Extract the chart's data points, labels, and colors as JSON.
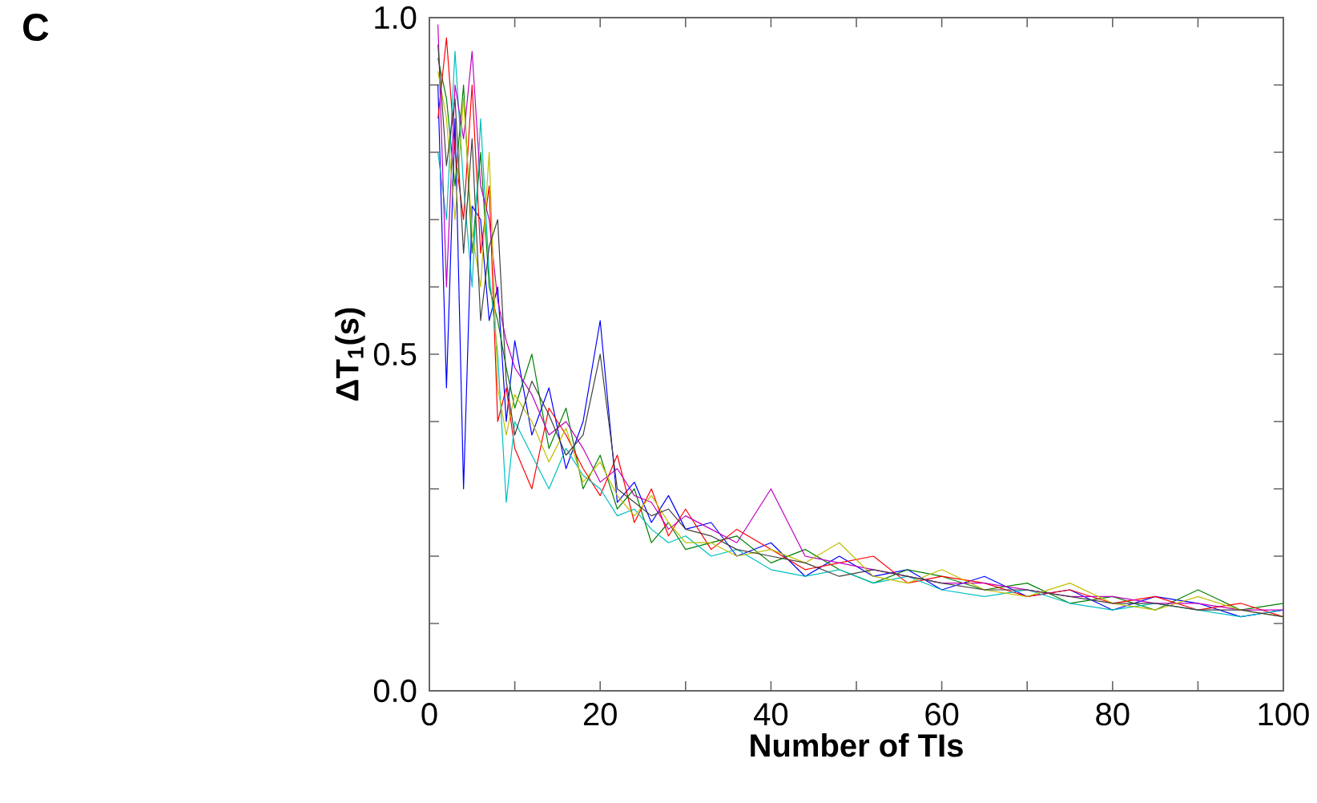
{
  "chart_data": {
    "type": "line",
    "xlabel": "Number of TIs",
    "ylabel": "ΔT$_{1}$(s)",
    "annotations": [
      "C"
    ],
    "x": [
      1,
      2,
      3,
      4,
      5,
      6,
      7,
      8,
      9,
      10,
      12,
      14,
      16,
      18,
      20,
      22,
      24,
      26,
      28,
      30,
      33,
      36,
      40,
      44,
      48,
      52,
      56,
      60,
      65,
      70,
      75,
      80,
      85,
      90,
      95,
      100
    ],
    "series": [
      {
        "color": "#0000ff",
        "values": [
          0.9,
          0.45,
          0.85,
          0.3,
          0.72,
          0.7,
          0.55,
          0.6,
          0.4,
          0.52,
          0.38,
          0.45,
          0.33,
          0.4,
          0.55,
          0.28,
          0.31,
          0.25,
          0.29,
          0.24,
          0.25,
          0.2,
          0.22,
          0.17,
          0.2,
          0.17,
          0.18,
          0.15,
          0.17,
          0.14,
          0.15,
          0.12,
          0.14,
          0.13,
          0.11,
          0.12
        ]
      },
      {
        "color": "#008000",
        "values": [
          0.94,
          0.88,
          0.75,
          0.9,
          0.65,
          0.8,
          0.6,
          0.55,
          0.48,
          0.42,
          0.5,
          0.36,
          0.42,
          0.3,
          0.35,
          0.27,
          0.3,
          0.22,
          0.25,
          0.21,
          0.22,
          0.23,
          0.19,
          0.21,
          0.18,
          0.16,
          0.18,
          0.17,
          0.15,
          0.16,
          0.13,
          0.14,
          0.12,
          0.15,
          0.12,
          0.13
        ]
      },
      {
        "color": "#ff0000",
        "values": [
          0.85,
          0.97,
          0.8,
          0.7,
          0.9,
          0.65,
          0.75,
          0.4,
          0.45,
          0.36,
          0.3,
          0.42,
          0.38,
          0.33,
          0.29,
          0.35,
          0.25,
          0.3,
          0.23,
          0.27,
          0.21,
          0.24,
          0.21,
          0.18,
          0.19,
          0.2,
          0.16,
          0.17,
          0.16,
          0.14,
          0.15,
          0.13,
          0.14,
          0.12,
          0.13,
          0.11
        ]
      },
      {
        "color": "#00bfbf",
        "values": [
          0.8,
          0.7,
          0.95,
          0.75,
          0.6,
          0.85,
          0.62,
          0.5,
          0.28,
          0.4,
          0.35,
          0.3,
          0.36,
          0.32,
          0.3,
          0.26,
          0.27,
          0.24,
          0.22,
          0.23,
          0.2,
          0.21,
          0.18,
          0.17,
          0.18,
          0.16,
          0.17,
          0.15,
          0.14,
          0.15,
          0.13,
          0.12,
          0.13,
          0.12,
          0.11,
          0.12
        ]
      },
      {
        "color": "#bf00bf",
        "values": [
          0.99,
          0.6,
          0.9,
          0.82,
          0.95,
          0.75,
          0.7,
          0.58,
          0.52,
          0.48,
          0.44,
          0.38,
          0.4,
          0.36,
          0.31,
          0.33,
          0.29,
          0.28,
          0.24,
          0.26,
          0.24,
          0.22,
          0.3,
          0.2,
          0.19,
          0.18,
          0.17,
          0.16,
          0.16,
          0.15,
          0.14,
          0.14,
          0.13,
          0.13,
          0.12,
          0.12
        ]
      },
      {
        "color": "#bfbf00",
        "values": [
          0.92,
          0.85,
          0.7,
          0.88,
          0.68,
          0.6,
          0.8,
          0.45,
          0.38,
          0.44,
          0.4,
          0.34,
          0.39,
          0.31,
          0.34,
          0.29,
          0.26,
          0.29,
          0.25,
          0.22,
          0.22,
          0.2,
          0.21,
          0.19,
          0.22,
          0.17,
          0.16,
          0.18,
          0.15,
          0.14,
          0.16,
          0.13,
          0.12,
          0.14,
          0.12,
          0.11
        ]
      },
      {
        "color": "#404040",
        "values": [
          0.96,
          0.78,
          0.88,
          0.65,
          0.82,
          0.55,
          0.66,
          0.7,
          0.46,
          0.38,
          0.46,
          0.41,
          0.35,
          0.38,
          0.5,
          0.3,
          0.28,
          0.26,
          0.27,
          0.24,
          0.23,
          0.21,
          0.2,
          0.19,
          0.17,
          0.18,
          0.17,
          0.16,
          0.15,
          0.15,
          0.14,
          0.13,
          0.13,
          0.12,
          0.12,
          0.11
        ]
      }
    ],
    "xlim": [
      0,
      100
    ],
    "ylim": [
      0,
      1
    ],
    "xticks": [
      0,
      {
        "value": 10,
        "label": null
      },
      20,
      {
        "value": 30,
        "label": null
      },
      40,
      {
        "value": 50,
        "label": null
      },
      60,
      {
        "value": 70,
        "label": null
      },
      80,
      {
        "value": 90,
        "label": null
      },
      100
    ],
    "yticks": [
      {
        "value": 0,
        "label": "0.0"
      },
      {
        "value": 0.1,
        "label": null
      },
      {
        "value": 0.2,
        "label": null
      },
      {
        "value": 0.3,
        "label": null
      },
      {
        "value": 0.4,
        "label": null
      },
      {
        "value": 0.5,
        "label": "0.5"
      },
      {
        "value": 0.6,
        "label": null
      },
      {
        "value": 0.7,
        "label": null
      },
      {
        "value": 0.8,
        "label": null
      },
      {
        "value": 0.9,
        "label": null
      },
      {
        "value": 1,
        "label": "1.0"
      }
    ],
    "grid": false,
    "marker": "none",
    "line_style": "solid"
  }
}
